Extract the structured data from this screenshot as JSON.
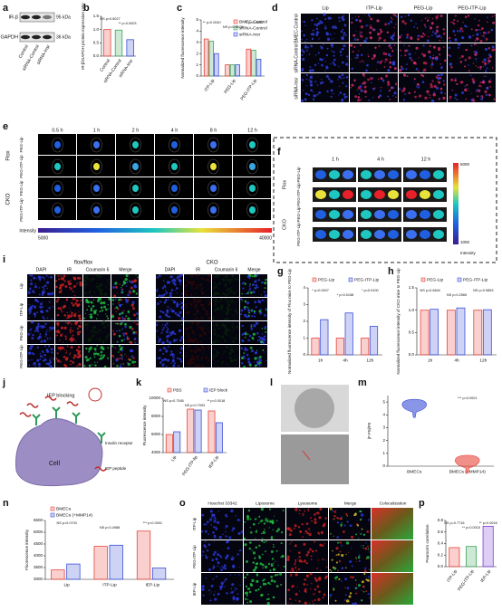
{
  "panels": {
    "a": {
      "letter": "a",
      "rows": [
        "IR-β",
        "GAPDH"
      ],
      "sizes": [
        "95 kDa",
        "36 kDa"
      ],
      "lanes": [
        "Control",
        "siRNA-Control",
        "siRNA-Insr"
      ]
    },
    "d": {
      "letter": "d",
      "columns": [
        "Lip",
        "ITP-Lip",
        "PEG-Lip",
        "PEG-ITP-Lip"
      ],
      "rows": [
        "BMEC-Control",
        "siRNA-Control",
        "siRNA-Insr"
      ],
      "stain": "IR/ DAPI"
    },
    "e": {
      "letter": "e",
      "times": [
        "0.5 h",
        "1 h",
        "2 h",
        "4 h",
        "8 h",
        "12 h"
      ],
      "groups": [
        {
          "name": "Flox",
          "rows": [
            "PEG-Lip",
            "PEG-ITP-Lip"
          ]
        },
        {
          "name": "CKO",
          "rows": [
            "PEG-Lip",
            "PEG-ITP-Lip"
          ]
        }
      ],
      "colorbar": {
        "label": "Intensity",
        "min": 5000,
        "max": 40000
      }
    },
    "f": {
      "letter": "f",
      "times": [
        "1 h",
        "4 h",
        "12 h"
      ],
      "groups": [
        {
          "name": "Flox",
          "rows": [
            "PEG-Lip",
            "PEG-ITP-Lip"
          ]
        },
        {
          "name": "CKO",
          "rows": [
            "PEG-Lip",
            "PEG-ITP-Lip"
          ]
        }
      ],
      "colorbar": {
        "label": "Intensity",
        "min": 1000,
        "max": 5000
      }
    },
    "i": {
      "letter": "i",
      "titles": [
        "flox/flox",
        "CKO"
      ],
      "columns": [
        "DAPI",
        "IR",
        "Coumarin 6",
        "Merge"
      ],
      "rows": [
        "Lip",
        "ITP-Lip",
        "PEG-Lip",
        "PEG-ITP-Lip"
      ]
    },
    "j": {
      "letter": "j",
      "labels": [
        "IEP blocking",
        "Insulin receptor",
        "IEP peptide",
        "Cell"
      ]
    },
    "l": {
      "letter": "l"
    },
    "o": {
      "letter": "o",
      "columns": [
        "Hoechst 33342",
        "Liposome",
        "Lysosome",
        "Merge",
        "Colocalization"
      ],
      "rows": [
        "ITP-Lip",
        "PEG-ITP-Lip",
        "IEP-Lip"
      ]
    }
  },
  "chart_data": [
    {
      "panel": "b",
      "type": "bar",
      "ylabel": "IR-β/GAPDH protein expression ratio",
      "categories": [
        "Control",
        "siRNA-Control",
        "siRNA-Insr"
      ],
      "values": [
        1.0,
        0.98,
        0.62
      ],
      "colors": [
        "#e8443a",
        "#3aa55a",
        "#3a4fd6"
      ],
      "ylim": [
        0,
        1.5
      ],
      "yticks": [
        {
          "value": 0,
          "label": "0.0"
        },
        {
          "value": 0.5,
          "label": "0.5"
        },
        {
          "value": 1,
          "label": "1.0"
        },
        {
          "value": 1.5,
          "label": "1.5"
        }
      ],
      "annotations": [
        "NS p=0.5027",
        "** p=0.0003"
      ]
    },
    {
      "panel": "c",
      "type": "bar",
      "ylabel": "Normalized fluorescence intensity",
      "categories": [
        "ITP-Lip",
        "PEG-Lip",
        "PEG-ITP-Lip"
      ],
      "series": [
        {
          "name": "BMEC-Control",
          "color": "#e8443a",
          "values": [
            3.3,
            1.0,
            2.4
          ]
        },
        {
          "name": "siRNA-Control",
          "color": "#3aa55a",
          "values": [
            3.1,
            1.0,
            2.3
          ]
        },
        {
          "name": "siRNA-Insr",
          "color": "#3a4fd6",
          "values": [
            2.0,
            1.0,
            1.5
          ]
        }
      ],
      "ylim": [
        0,
        5
      ],
      "yticks": [
        0,
        1,
        2,
        3,
        4,
        5
      ],
      "annotations": [
        "** p=0.0040",
        "NS p=0.8978",
        "** p=0.0032"
      ]
    },
    {
      "panel": "g",
      "type": "bar",
      "ylabel": "Normalized fluorescence intensity of Flox mice to PEG-Lip",
      "categories": [
        "1h",
        "4h",
        "12h"
      ],
      "series": [
        {
          "name": "PEG-Lip",
          "color": "#e8443a",
          "values": [
            1.0,
            1.0,
            1.0
          ]
        },
        {
          "name": "PEG-ITP-Lip",
          "color": "#3a4fd6",
          "values": [
            2.1,
            2.5,
            1.7
          ]
        }
      ],
      "ylim": [
        0,
        4
      ],
      "yticks": [
        0,
        1,
        2,
        3,
        4
      ],
      "annotations": [
        "* p=0.0407",
        "* p=0.0158",
        "* p=0.0100"
      ]
    },
    {
      "panel": "h",
      "type": "bar",
      "ylabel": "Normalized fluorescence intensity of CKO mice to PEG-Lip",
      "categories": [
        "1h",
        "4h",
        "12h"
      ],
      "series": [
        {
          "name": "PEG-Lip",
          "color": "#e8443a",
          "values": [
            1.0,
            1.0,
            1.0
          ]
        },
        {
          "name": "PEG-ITP-Lip",
          "color": "#3a4fd6",
          "values": [
            1.02,
            1.05,
            1.01
          ]
        }
      ],
      "ylim": [
        0,
        1.5
      ],
      "yticks": [
        {
          "value": 0,
          "label": "0.0"
        },
        {
          "value": 0.5,
          "label": "0.5"
        },
        {
          "value": 1,
          "label": "1.0"
        },
        {
          "value": 1.5,
          "label": "1.5"
        }
      ],
      "annotations": [
        "NS p=0.6844",
        "NS p=0.2565",
        "NS p=0.9853"
      ]
    },
    {
      "panel": "k",
      "type": "bar",
      "ylabel": "Fluorescence intensity",
      "categories": [
        "Lip",
        "PEG-ITP-lip",
        "IEP-Lip"
      ],
      "series": [
        {
          "name": "PBS",
          "color": "#e8443a",
          "values": [
            6000,
            8800,
            8600
          ]
        },
        {
          "name": "IEP block",
          "color": "#3a4fd6",
          "values": [
            6300,
            8700,
            7300
          ]
        }
      ],
      "ylim": [
        4000,
        10000
      ],
      "yticks": [
        4000,
        6000,
        8000,
        10000
      ],
      "annotations": [
        "NS p=0.7545",
        "NS p=0.7093",
        "** p=0.0018"
      ]
    },
    {
      "panel": "m",
      "type": "violin",
      "ylabel": "|F-F0|/F0",
      "categories": [
        "BMECs",
        "BMECs (+MMP14)"
      ],
      "values": [
        4.5,
        0.15
      ],
      "colors": [
        "#3a4fd6",
        "#e8443a"
      ],
      "ylim": [
        0,
        5.5
      ],
      "yticks": [
        0,
        1,
        2,
        3,
        4,
        5
      ],
      "annotations": [
        "*** p<0.0001"
      ]
    },
    {
      "panel": "n",
      "type": "bar",
      "ylabel": "Fluorescence intensity",
      "categories": [
        "Lip",
        "ITP-Lip",
        "IEP-Lip"
      ],
      "series": [
        {
          "name": "BMECs",
          "color": "#e8443a",
          "values": [
            3400,
            4400,
            5050
          ]
        },
        {
          "name": "BMECs (+MMP14)",
          "color": "#3a4fd6",
          "values": [
            3650,
            4450,
            3480
          ]
        }
      ],
      "ylim": [
        3000,
        5500
      ],
      "yticks": [
        3000,
        3500,
        4000,
        4500,
        5000,
        5500
      ],
      "annotations": [
        "NS p=0.0703",
        "NS p=0.4988",
        "*** p<0.0001"
      ]
    },
    {
      "panel": "p",
      "type": "bar",
      "ylabel": "Pearson's correlation",
      "categories": [
        "ITP-Lip",
        "PEG-ITP-Lip",
        "IEP-Lip"
      ],
      "values": [
        0.33,
        0.35,
        0.7
      ],
      "colors": [
        "#e8443a",
        "#3aa55a",
        "#7a3ad6"
      ],
      "ylim": [
        0,
        0.8
      ],
      "yticks": [
        {
          "value": 0,
          "label": "0.0"
        },
        {
          "value": 0.2,
          "label": "0.2"
        },
        {
          "value": 0.4,
          "label": "0.4"
        },
        {
          "value": 0.6,
          "label": "0.6"
        },
        {
          "value": 0.8,
          "label": "0.8"
        }
      ],
      "annotations": [
        "NS p=0.7716",
        "** p=0.0015",
        "** p=0.0018"
      ]
    }
  ]
}
